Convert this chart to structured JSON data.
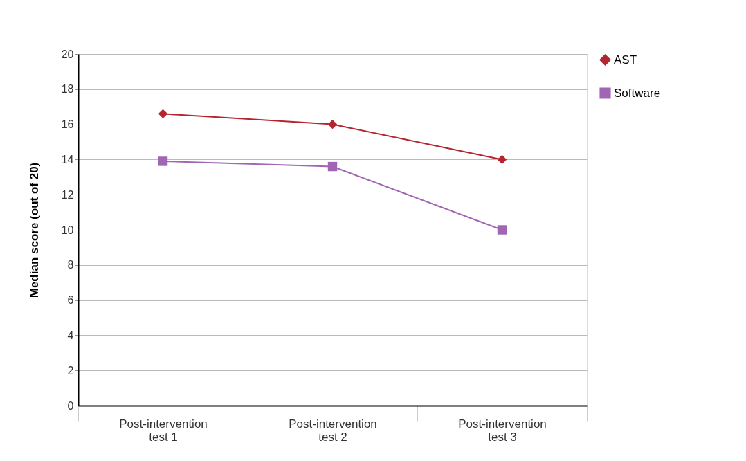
{
  "chart_data": {
    "type": "line",
    "ylabel": "Median score (out of 20)",
    "categories": [
      "Post-intervention\ntest 1",
      "Post-intervention\ntest 2",
      "Post-intervention\ntest 3"
    ],
    "series": [
      {
        "name": "AST",
        "color": "#b5252f",
        "marker": "diamond",
        "line_style": "solid",
        "values": [
          16.6,
          16.0,
          14.0
        ]
      },
      {
        "name": "Software",
        "color": "#a066b4",
        "marker": "square",
        "line_style": "solid",
        "values": [
          13.9,
          13.6,
          10.0
        ]
      }
    ],
    "ylim": [
      0,
      20
    ],
    "yticks": [
      0,
      2,
      4,
      6,
      8,
      10,
      12,
      14,
      16,
      18,
      20
    ],
    "grid": "y",
    "legend": "right"
  }
}
